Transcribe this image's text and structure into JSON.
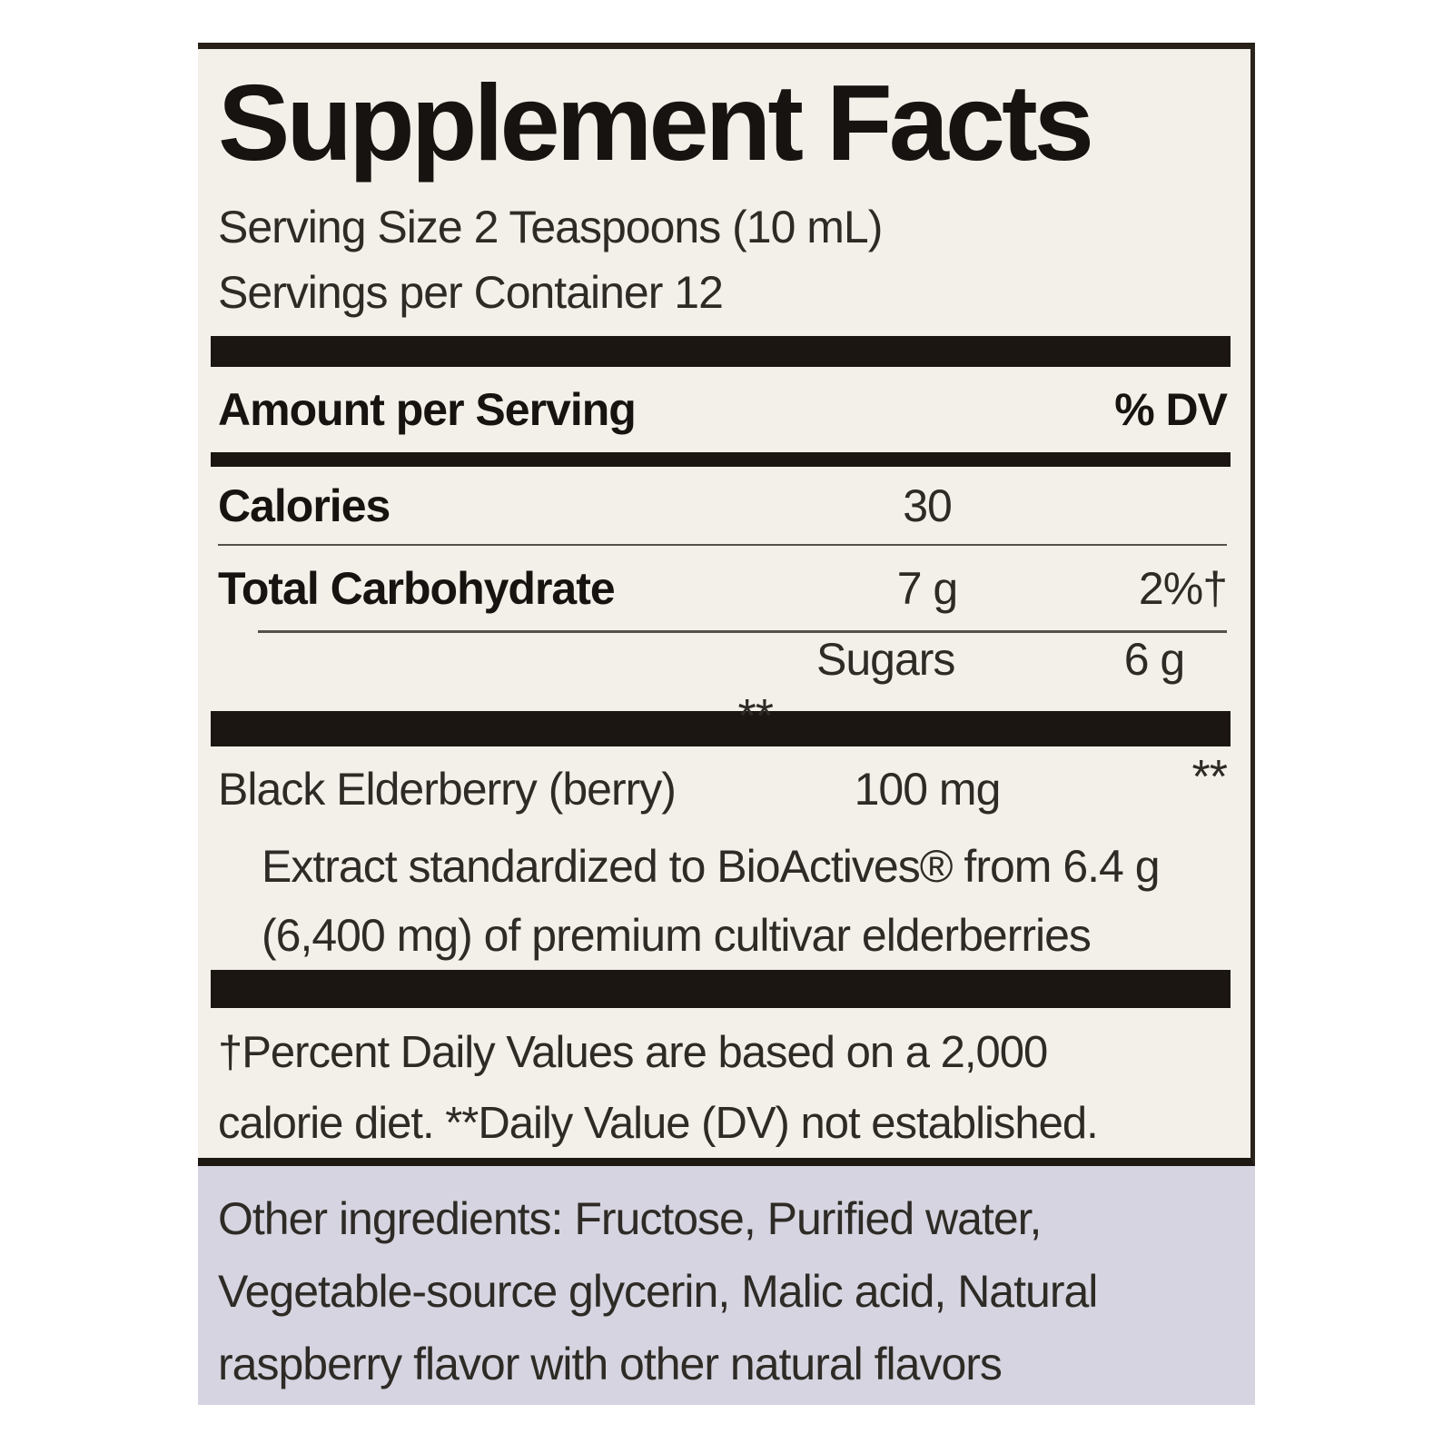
{
  "colors": {
    "page_bg": "#ffffff",
    "label_bg": "#f2f0e9",
    "bar": "#1b1611",
    "border": "#2a241d",
    "text": "#2e2b26",
    "bold_text": "#171310",
    "thin_rule": "#55504a",
    "other_ingredients_bg": "#d5d4e0"
  },
  "label": {
    "title": "Supplement Facts",
    "serving_lines": [
      "Serving Size 2 Teaspoons (10 mL)",
      "Servings per Container 12"
    ],
    "header": {
      "amount_label": "Amount per Serving",
      "dv_label": "% DV"
    },
    "rows": [
      {
        "name": "Calories",
        "amount": "30",
        "dv": ""
      },
      {
        "name": "Total Carbohydrate",
        "amount": "7 g",
        "dv": "2%†"
      },
      {
        "name": "Sugars",
        "amount": "6 g",
        "dv": "**"
      },
      {
        "name": "Black Elderberry (berry)",
        "amount": "100 mg",
        "dv": "**"
      }
    ],
    "elderberry_note_lines": [
      "Extract standardized to BioActives® from 6.4 g",
      "(6,400 mg) of premium cultivar elderberries"
    ],
    "footnote_lines": [
      "†Percent Daily Values are based on a 2,000",
      "calorie diet. **Daily Value (DV) not established."
    ]
  },
  "other_ingredients": {
    "lines": [
      "Other ingredients: Fructose, Purified water,",
      "Vegetable-source glycerin, Malic acid, Natural",
      "raspberry flavor with other natural flavors"
    ]
  }
}
